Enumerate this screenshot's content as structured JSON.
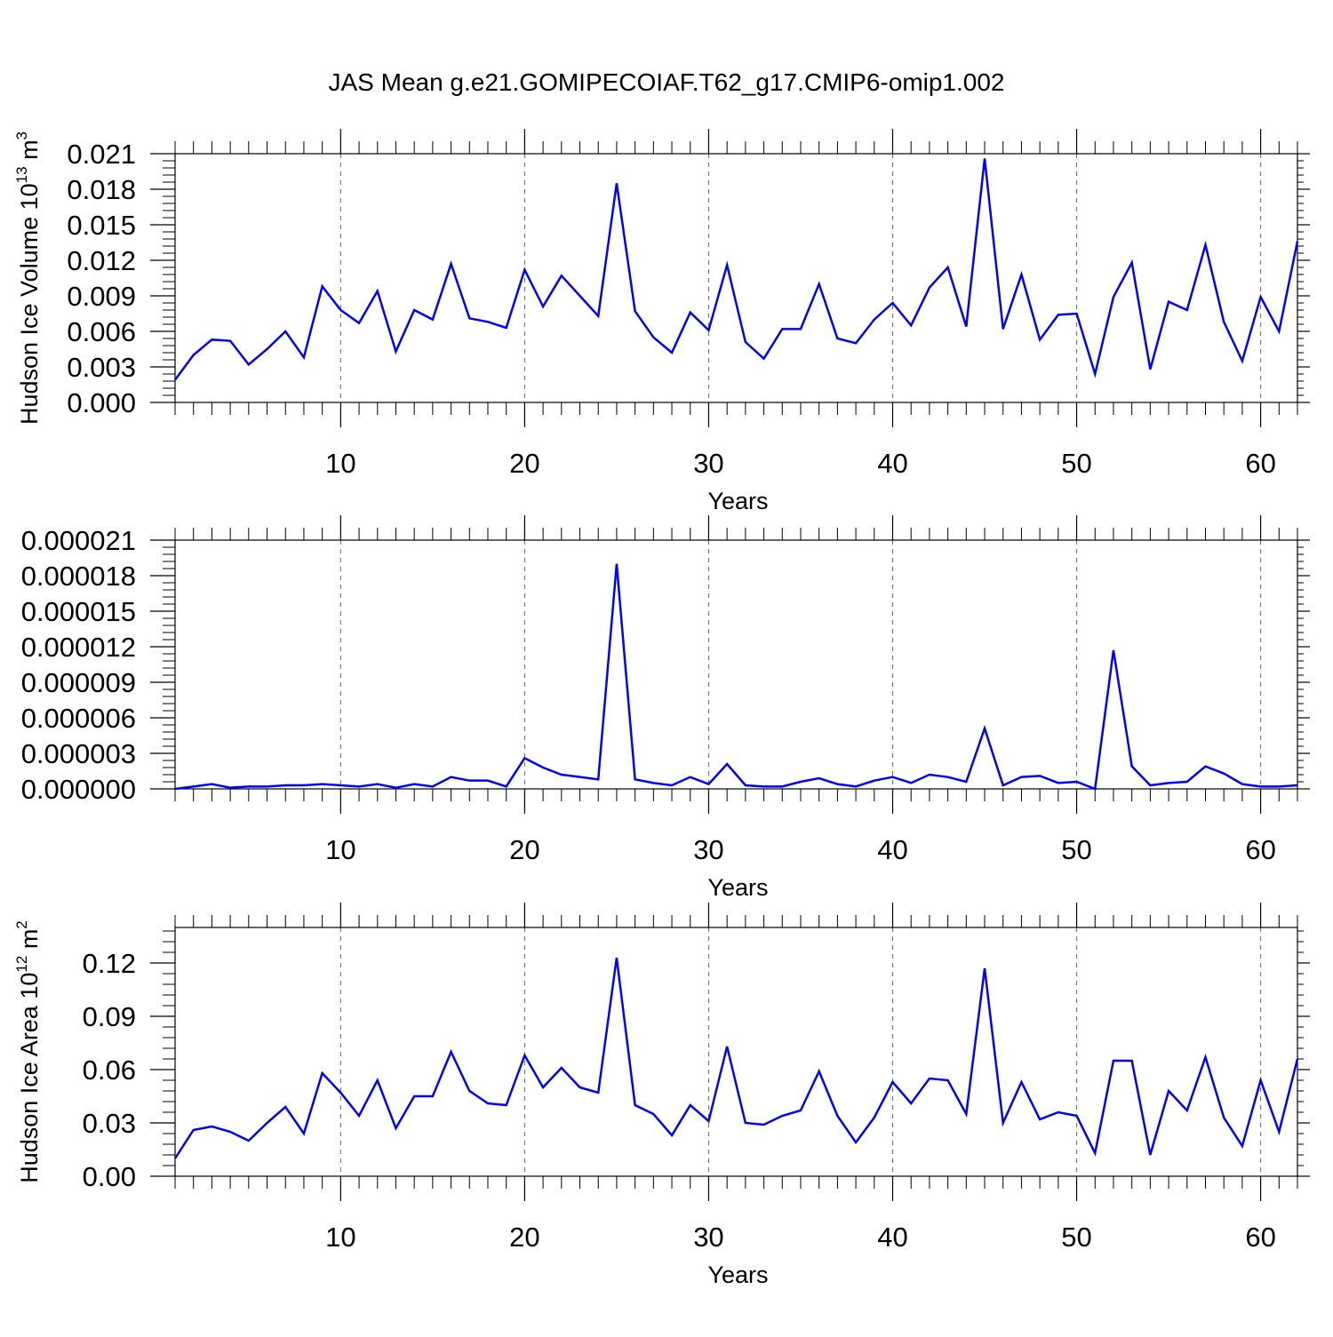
{
  "title": "JAS Mean g.e21.GOMIPECOIAF.T62_g17.CMIP6-omip1.002",
  "colors": {
    "series": "#0000ff",
    "axes": "#000000",
    "grid": "#666666"
  },
  "chart_data": [
    {
      "type": "line",
      "title": "",
      "xlabel": "Years",
      "ylabel": "Hudson Ice Volume 10",
      "ylabel_sup": "13",
      "ylabel_tail": " m",
      "ylabel_tail_sup": "3",
      "xlim": [
        1,
        62
      ],
      "ylim": [
        0,
        0.021
      ],
      "grid": "vertical dashed at major x ticks",
      "xticks": [
        10,
        20,
        30,
        40,
        50,
        60
      ],
      "xtick_labels": [
        "10",
        "20",
        "30",
        "40",
        "50",
        "60"
      ],
      "yticks": [
        0,
        0.003,
        0.006,
        0.009,
        0.012,
        0.015,
        0.018,
        0.021
      ],
      "ytick_labels": [
        "0.000",
        "0.003",
        "0.006",
        "0.009",
        "0.012",
        "0.015",
        "0.018",
        "0.021"
      ],
      "x": [
        1,
        2,
        3,
        4,
        5,
        6,
        7,
        8,
        9,
        10,
        11,
        12,
        13,
        14,
        15,
        16,
        17,
        18,
        19,
        20,
        21,
        22,
        23,
        24,
        25,
        26,
        27,
        28,
        29,
        30,
        31,
        32,
        33,
        34,
        35,
        36,
        37,
        38,
        39,
        40,
        41,
        42,
        43,
        44,
        45,
        46,
        47,
        48,
        49,
        50,
        51,
        52,
        53,
        54,
        55,
        56,
        57,
        58,
        59,
        60,
        61,
        62
      ],
      "series": [
        {
          "values": [
            0.0019,
            0.004,
            0.0053,
            0.0052,
            0.0032,
            0.0045,
            0.006,
            0.0038,
            0.0098,
            0.0078,
            0.0067,
            0.0094,
            0.0043,
            0.0078,
            0.007,
            0.0117,
            0.0071,
            0.0068,
            0.0063,
            0.0112,
            0.0081,
            0.0107,
            0.009,
            0.0073,
            0.0185,
            0.0077,
            0.0055,
            0.0042,
            0.0076,
            0.0061,
            0.0116,
            0.0051,
            0.0037,
            0.0062,
            0.0062,
            0.01,
            0.0054,
            0.005,
            0.007,
            0.0084,
            0.0065,
            0.0097,
            0.0114,
            0.0064,
            0.0206,
            0.0062,
            0.0108,
            0.0053,
            0.0074,
            0.0075,
            0.0024,
            0.0089,
            0.0118,
            0.0028,
            0.0085,
            0.0078,
            0.0133,
            0.0068,
            0.0035,
            0.0089,
            0.006,
            0.0136
          ]
        }
      ]
    },
    {
      "type": "line",
      "title": "",
      "xlabel": "Years",
      "ylabel": "",
      "xlim": [
        1,
        62
      ],
      "ylim": [
        0,
        2.1e-05
      ],
      "grid": "vertical dashed at major x ticks",
      "xticks": [
        10,
        20,
        30,
        40,
        50,
        60
      ],
      "xtick_labels": [
        "10",
        "20",
        "30",
        "40",
        "50",
        "60"
      ],
      "yticks": [
        0,
        3e-06,
        6e-06,
        9e-06,
        1.2e-05,
        1.5e-05,
        1.8e-05,
        2.1e-05
      ],
      "ytick_labels": [
        "0.000000",
        "0.000003",
        "0.000006",
        "0.000009",
        "0.000012",
        "0.000015",
        "0.000018",
        "0.000021"
      ],
      "x": [
        1,
        2,
        3,
        4,
        5,
        6,
        7,
        8,
        9,
        10,
        11,
        12,
        13,
        14,
        15,
        16,
        17,
        18,
        19,
        20,
        21,
        22,
        23,
        24,
        25,
        26,
        27,
        28,
        29,
        30,
        31,
        32,
        33,
        34,
        35,
        36,
        37,
        38,
        39,
        40,
        41,
        42,
        43,
        44,
        45,
        46,
        47,
        48,
        49,
        50,
        51,
        52,
        53,
        54,
        55,
        56,
        57,
        58,
        59,
        60,
        61,
        62
      ],
      "series": [
        {
          "values": [
            0.0,
            2e-07,
            4e-07,
            1e-07,
            2e-07,
            2e-07,
            3e-07,
            3e-07,
            4e-07,
            3e-07,
            2e-07,
            4e-07,
            1e-07,
            4e-07,
            2e-07,
            1e-06,
            7e-07,
            7e-07,
            2e-07,
            2.6e-06,
            1.8e-06,
            1.2e-06,
            1e-06,
            8e-07,
            1.9e-05,
            8e-07,
            5e-07,
            3e-07,
            1e-06,
            4e-07,
            2.1e-06,
            3e-07,
            2e-07,
            2e-07,
            6e-07,
            9e-07,
            4e-07,
            2e-07,
            7e-07,
            1e-06,
            5e-07,
            1.2e-06,
            1e-06,
            6e-07,
            5.1e-06,
            3e-07,
            1e-06,
            1.1e-06,
            5e-07,
            6e-07,
            0.0,
            1.17e-05,
            1.9e-06,
            3e-07,
            5e-07,
            6e-07,
            1.9e-06,
            1.3e-06,
            4e-07,
            2e-07,
            2e-07,
            3e-07
          ]
        }
      ]
    },
    {
      "type": "line",
      "title": "",
      "xlabel": "Years",
      "ylabel": "Hudson Ice Area 10",
      "ylabel_sup": "12",
      "ylabel_tail": " m",
      "ylabel_tail_sup": "2",
      "xlim": [
        1,
        62
      ],
      "ylim": [
        0,
        0.14
      ],
      "grid": "vertical dashed at major x ticks",
      "xticks": [
        10,
        20,
        30,
        40,
        50,
        60
      ],
      "xtick_labels": [
        "10",
        "20",
        "30",
        "40",
        "50",
        "60"
      ],
      "yticks": [
        0,
        0.03,
        0.06,
        0.09,
        0.12
      ],
      "ytick_labels": [
        "0.00",
        "0.03",
        "0.06",
        "0.09",
        "0.12"
      ],
      "x": [
        1,
        2,
        3,
        4,
        5,
        6,
        7,
        8,
        9,
        10,
        11,
        12,
        13,
        14,
        15,
        16,
        17,
        18,
        19,
        20,
        21,
        22,
        23,
        24,
        25,
        26,
        27,
        28,
        29,
        30,
        31,
        32,
        33,
        34,
        35,
        36,
        37,
        38,
        39,
        40,
        41,
        42,
        43,
        44,
        45,
        46,
        47,
        48,
        49,
        50,
        51,
        52,
        53,
        54,
        55,
        56,
        57,
        58,
        59,
        60,
        61,
        62
      ],
      "series": [
        {
          "values": [
            0.01,
            0.026,
            0.028,
            0.025,
            0.02,
            0.03,
            0.039,
            0.024,
            0.058,
            0.047,
            0.034,
            0.054,
            0.027,
            0.045,
            0.045,
            0.07,
            0.048,
            0.041,
            0.04,
            0.068,
            0.05,
            0.061,
            0.05,
            0.047,
            0.123,
            0.04,
            0.035,
            0.023,
            0.04,
            0.031,
            0.073,
            0.03,
            0.029,
            0.034,
            0.037,
            0.059,
            0.034,
            0.019,
            0.033,
            0.053,
            0.041,
            0.055,
            0.054,
            0.035,
            0.117,
            0.03,
            0.053,
            0.032,
            0.036,
            0.034,
            0.013,
            0.065,
            0.065,
            0.012,
            0.048,
            0.037,
            0.067,
            0.033,
            0.017,
            0.054,
            0.025,
            0.066
          ]
        }
      ]
    }
  ]
}
